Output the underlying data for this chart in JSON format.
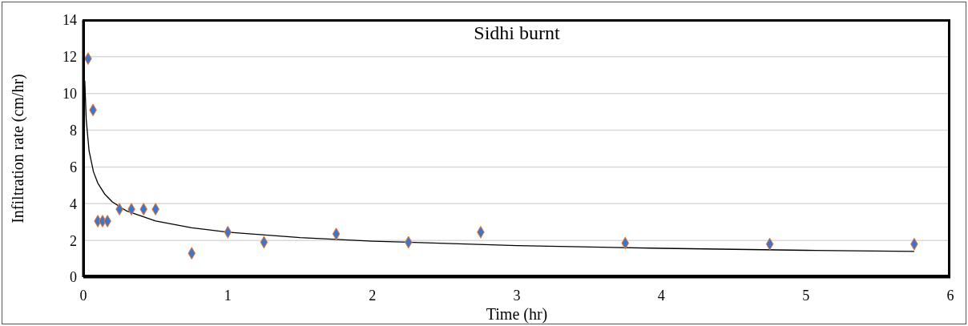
{
  "chart_data": {
    "type": "scatter",
    "title": "Sidhi burnt",
    "xlabel": "Time (hr)",
    "ylabel": "Infiltration rate (cm/hr)",
    "xlim": [
      0,
      6
    ],
    "xticks": [
      0,
      1,
      2,
      3,
      4,
      5,
      6
    ],
    "ylim": [
      0,
      14
    ],
    "yticks": [
      0,
      2,
      4,
      6,
      8,
      10,
      12,
      14
    ],
    "grid": "y",
    "marker": "diamond",
    "series": [
      {
        "color": "#4472c4",
        "x": [
          0.033,
          0.067,
          0.1,
          0.133,
          0.167,
          0.25,
          0.333,
          0.417,
          0.5,
          0.75,
          1,
          1.25,
          1.75,
          2.25,
          2.75,
          3.75,
          4.75,
          5.75
        ],
        "values": [
          11.9,
          9.1,
          3.05,
          3.05,
          3.05,
          3.7,
          3.7,
          3.7,
          3.7,
          1.3,
          2.45,
          1.9,
          2.35,
          1.9,
          2.45,
          1.85,
          1.8,
          1.8
        ]
      },
      {
        "type": "line",
        "color": "#000000",
        "marker": "none",
        "line_style": "solid",
        "x": [
          0.01,
          0.02,
          0.04,
          0.07,
          0.1,
          0.15,
          0.2,
          0.3,
          0.5,
          0.75,
          1,
          1.5,
          2,
          3,
          4,
          5,
          5.75
        ],
        "values": [
          10.7,
          8.57,
          6.86,
          5.74,
          5.12,
          4.5,
          4.1,
          3.6,
          3.06,
          2.69,
          2.45,
          2.15,
          1.96,
          1.72,
          1.57,
          1.46,
          1.4
        ]
      }
    ]
  }
}
